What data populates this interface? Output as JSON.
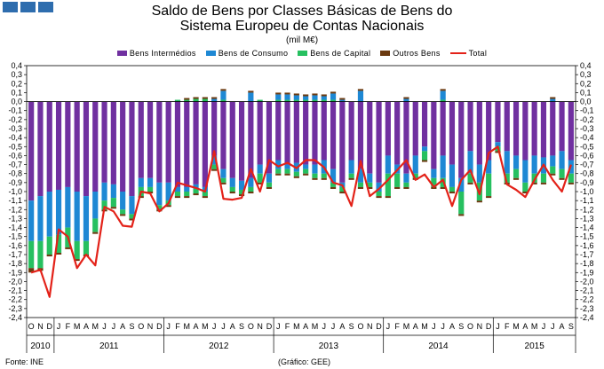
{
  "title_line1": "Saldo de Bens por Classes Básicas de Bens do",
  "title_line2": "Sistema Europeu de Contas Nacionais",
  "unit": "(mil M€)",
  "footer_source": "Fonte: INE",
  "footer_credit": "(Gráfico: GEE)",
  "colors": {
    "intermedios": "#7030a0",
    "consumo": "#1e88d4",
    "capital": "#26c060",
    "outros": "#6b3a10",
    "total": "#e32219",
    "logo": "#2e6dae"
  },
  "chart_data": {
    "type": "bar",
    "stacked": true,
    "legend_position": "top",
    "grid": false,
    "ylim": [
      -2.4,
      0.4
    ],
    "yticks": [
      "0,4",
      "0,3",
      "0,2",
      "0,1",
      "0,0",
      "-0,1",
      "-0,2",
      "-0,3",
      "-0,4",
      "-0,5",
      "-0,6",
      "-0,7",
      "-0,8",
      "-0,9",
      "-1,0",
      "-1,1",
      "-1,2",
      "-1,3",
      "-1,4",
      "-1,5",
      "-1,6",
      "-1,7",
      "-1,8",
      "-1,9",
      "-2,0",
      "-2,1",
      "-2,2",
      "-2,3",
      "-2,4"
    ],
    "categories": [
      "O",
      "N",
      "D",
      "J",
      "F",
      "M",
      "A",
      "M",
      "J",
      "J",
      "A",
      "S",
      "O",
      "N",
      "D",
      "J",
      "F",
      "M",
      "A",
      "M",
      "J",
      "J",
      "A",
      "S",
      "O",
      "N",
      "D",
      "J",
      "F",
      "M",
      "A",
      "M",
      "J",
      "J",
      "A",
      "S",
      "O",
      "N",
      "D",
      "J",
      "F",
      "M",
      "A",
      "M",
      "J",
      "J",
      "A",
      "S",
      "O",
      "N",
      "D",
      "J",
      "F",
      "M",
      "A",
      "M",
      "J",
      "J",
      "A",
      "S"
    ],
    "years": [
      {
        "label": "2010",
        "count": 3
      },
      {
        "label": "2011",
        "count": 12
      },
      {
        "label": "2012",
        "count": 12
      },
      {
        "label": "2013",
        "count": 12
      },
      {
        "label": "2014",
        "count": 12
      },
      {
        "label": "2015",
        "count": 9
      }
    ],
    "series": [
      {
        "name": "Bens Intermédios",
        "values": [
          -1.1,
          -1.05,
          -1.0,
          -0.98,
          -0.95,
          -1.0,
          -1.05,
          -1.0,
          -0.9,
          -0.92,
          -1.0,
          -1.05,
          -0.85,
          -0.85,
          -0.9,
          -0.9,
          -0.95,
          -0.95,
          -0.92,
          -0.95,
          -0.6,
          -0.75,
          -0.85,
          -0.88,
          -0.85,
          -0.7,
          -0.8,
          -0.65,
          -0.7,
          -0.68,
          -0.7,
          -0.7,
          -0.65,
          -0.75,
          -0.9,
          -0.65,
          -0.75,
          -0.8,
          -0.9,
          -0.6,
          -0.7,
          -0.8,
          -0.6,
          -0.5,
          -0.75,
          -0.6,
          -0.7,
          -0.85,
          -0.55,
          -0.7,
          -0.65,
          -0.45,
          -0.55,
          -0.6,
          -0.65,
          -0.6,
          -0.62,
          -0.6,
          -0.55,
          -0.65
        ]
      },
      {
        "name": "Bens de Consumo",
        "values": [
          -0.45,
          -0.5,
          -0.5,
          -0.5,
          -0.45,
          -0.55,
          -0.5,
          -0.3,
          -0.2,
          -0.15,
          -0.2,
          -0.2,
          -0.1,
          -0.1,
          -0.25,
          -0.2,
          -0.05,
          -0.05,
          -0.05,
          -0.05,
          -0.1,
          -0.1,
          -0.1,
          -0.1,
          -0.1,
          -0.1,
          -0.1,
          -0.1,
          -0.05,
          -0.1,
          -0.05,
          -0.1,
          -0.15,
          -0.15,
          -0.05,
          -0.15,
          -0.15,
          -0.1,
          -0.1,
          -0.2,
          -0.1,
          -0.1,
          -0.2,
          -0.05,
          -0.1,
          -0.25,
          -0.25,
          -0.15,
          -0.25,
          -0.2,
          -0.15,
          -0.05,
          -0.25,
          -0.15,
          -0.25,
          -0.2,
          -0.18,
          -0.12,
          -0.2,
          -0.15
        ]
      },
      {
        "name": "Bens de Capital",
        "values": [
          -0.3,
          -0.3,
          -0.2,
          -0.2,
          -0.22,
          -0.2,
          -0.15,
          -0.15,
          -0.1,
          -0.1,
          -0.05,
          -0.05,
          -0.1,
          -0.05,
          -0.05,
          -0.05,
          -0.05,
          -0.05,
          -0.05,
          -0.05,
          -0.05,
          -0.05,
          -0.05,
          -0.05,
          -0.05,
          -0.1,
          -0.05,
          -0.05,
          -0.05,
          -0.05,
          -0.05,
          -0.05,
          -0.05,
          -0.05,
          -0.05,
          -0.05,
          -0.05,
          -0.05,
          -0.05,
          -0.25,
          -0.15,
          -0.05,
          -0.05,
          -0.1,
          -0.1,
          -0.1,
          -0.05,
          -0.25,
          -0.1,
          -0.2,
          -0.25,
          -0.05,
          -0.1,
          -0.1,
          -0.1,
          -0.1,
          -0.1,
          -0.08,
          -0.1,
          -0.1
        ]
      },
      {
        "name": "Outros Bens",
        "values": [
          -0.05,
          -0.03,
          -0.02,
          -0.02,
          -0.02,
          -0.02,
          -0.02,
          -0.02,
          -0.02,
          -0.02,
          -0.02,
          -0.02,
          -0.02,
          -0.02,
          -0.02,
          -0.02,
          -0.02,
          -0.02,
          -0.02,
          -0.02,
          -0.02,
          -0.02,
          -0.02,
          -0.02,
          -0.02,
          -0.02,
          -0.02,
          -0.02,
          -0.02,
          -0.02,
          -0.02,
          -0.02,
          -0.02,
          -0.02,
          -0.02,
          -0.02,
          -0.02,
          -0.02,
          -0.02,
          -0.02,
          -0.02,
          -0.02,
          -0.02,
          -0.02,
          -0.02,
          -0.02,
          -0.02,
          -0.02,
          -0.02,
          -0.02,
          -0.02,
          -0.02,
          -0.02,
          -0.02,
          -0.02,
          -0.02,
          -0.02,
          -0.02,
          -0.02,
          -0.02
        ]
      },
      {
        "name": "Total",
        "values": [
          -1.9,
          -1.87,
          -2.17,
          -1.42,
          -1.5,
          -1.85,
          -1.7,
          -1.82,
          -1.17,
          -1.22,
          -1.38,
          -1.39,
          -1.0,
          -1.02,
          -1.22,
          -1.13,
          -0.9,
          -0.93,
          -0.96,
          -1.0,
          -0.55,
          -1.08,
          -1.09,
          -1.07,
          -0.75,
          -1.0,
          -0.65,
          -0.72,
          -0.68,
          -0.74,
          -0.65,
          -0.65,
          -0.73,
          -0.9,
          -0.93,
          -1.16,
          -0.66,
          -1.05,
          -0.97,
          -0.87,
          -0.76,
          -0.65,
          -0.87,
          -0.81,
          -0.95,
          -0.87,
          -1.16,
          -0.87,
          -0.76,
          -1.03,
          -0.57,
          -0.5,
          -0.92,
          -0.98,
          -1.06,
          -0.87,
          -0.7,
          -0.87,
          -1.0,
          -0.7
        ]
      }
    ],
    "positive_stack": {
      "capital_pos": [
        0,
        0,
        0,
        0,
        0,
        0,
        0,
        0,
        0,
        0,
        0,
        0,
        0,
        0,
        0,
        0,
        0.02,
        0.02,
        0.03,
        0.03,
        0,
        0.02,
        0,
        0,
        0,
        0.02,
        0,
        0.02,
        0.02,
        0.02,
        0.02,
        0.02,
        0.02,
        0.02,
        0,
        0,
        0,
        0,
        0,
        0,
        0,
        0,
        0,
        0,
        0,
        0.02,
        0,
        0,
        0,
        0,
        0,
        0,
        0,
        0,
        0,
        0,
        0,
        0,
        0,
        0
      ],
      "consumo_pos": [
        0,
        0,
        0,
        0,
        0,
        0,
        0,
        0,
        0,
        0,
        0,
        0,
        0,
        0,
        0,
        0,
        0,
        0,
        0,
        0,
        0.03,
        0.1,
        0,
        0,
        0.1,
        0,
        0,
        0.06,
        0.06,
        0.05,
        0.04,
        0.05,
        0.04,
        0.07,
        0.02,
        0,
        0.12,
        0,
        0,
        0,
        0,
        0.03,
        0,
        0,
        0,
        0.1,
        0,
        0,
        0,
        0,
        0,
        0,
        0,
        0,
        0,
        0,
        0,
        0.03,
        0,
        0
      ],
      "outros_pos": [
        0,
        0,
        0,
        0,
        0,
        0,
        0,
        0,
        0,
        0,
        0,
        0,
        0,
        0,
        0,
        0,
        0,
        0.02,
        0.02,
        0.02,
        0.02,
        0.02,
        0,
        0,
        0.02,
        0,
        0,
        0.02,
        0.02,
        0.02,
        0.02,
        0.02,
        0.02,
        0.02,
        0.02,
        0,
        0.02,
        0,
        0,
        0,
        0,
        0.02,
        0,
        0,
        0,
        0.02,
        0,
        0,
        0,
        0,
        0,
        0,
        0,
        0,
        0,
        0,
        0,
        0.02,
        0,
        0
      ]
    }
  }
}
